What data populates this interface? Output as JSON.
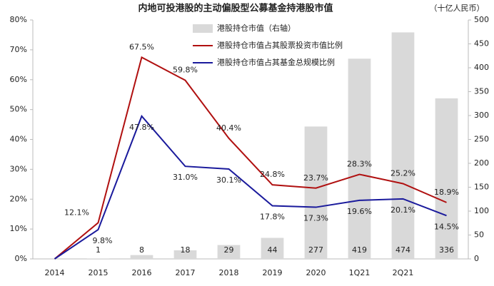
{
  "chart_data": {
    "type": "bar-line",
    "title": "内地可投港股的主动偏股型公募基金持港股市值",
    "y2_label": "（十亿人民币）",
    "categories": [
      "2014",
      "2015",
      "2016",
      "2017",
      "2018",
      "2019",
      "2020",
      "1Q21",
      "2Q21",
      null
    ],
    "series": [
      {
        "name": "港股持仓市值（右轴）",
        "type": "bar",
        "axis": "y2",
        "color": "#d9d9d9",
        "values": [
          null,
          1,
          8,
          18,
          29,
          44,
          277,
          419,
          474,
          336
        ]
      },
      {
        "name": "港股持仓市值占其股票投资市值比例",
        "type": "line",
        "color": "#b01010",
        "values": [
          0,
          12.1,
          67.5,
          59.8,
          40.4,
          24.8,
          23.7,
          28.3,
          25.2,
          18.9
        ],
        "value_labels": [
          null,
          "12.1%",
          "67.5%",
          "59.8%",
          "40.4%",
          "24.8%",
          "23.7%",
          "28.3%",
          "25.2%",
          "18.9%"
        ]
      },
      {
        "name": "港股持仓市值占其基金总规模比例",
        "type": "line",
        "color": "#1a1a9c",
        "values": [
          0,
          9.8,
          47.8,
          31.0,
          30.1,
          17.8,
          17.3,
          19.6,
          20.1,
          14.5
        ],
        "value_labels": [
          null,
          "9.8%",
          "47.8%",
          "31.0%",
          "30.1%",
          "17.8%",
          "17.3%",
          "19.6%",
          "20.1%",
          "14.5%"
        ]
      }
    ],
    "ylim": [
      0,
      80
    ],
    "yticks": [
      {
        "value": 0,
        "label": "0%"
      },
      {
        "value": 10,
        "label": "10%"
      },
      {
        "value": 20,
        "label": "20%"
      },
      {
        "value": 30,
        "label": "30%"
      },
      {
        "value": 40,
        "label": "40%"
      },
      {
        "value": 50,
        "label": "50%"
      },
      {
        "value": 60,
        "label": "60%"
      },
      {
        "value": 70,
        "label": "70%"
      },
      {
        "value": 80,
        "label": "80%"
      }
    ],
    "y2lim": [
      0,
      500
    ],
    "y2ticks": [
      0,
      50,
      100,
      150,
      200,
      250,
      300,
      350,
      400,
      450,
      500
    ]
  }
}
